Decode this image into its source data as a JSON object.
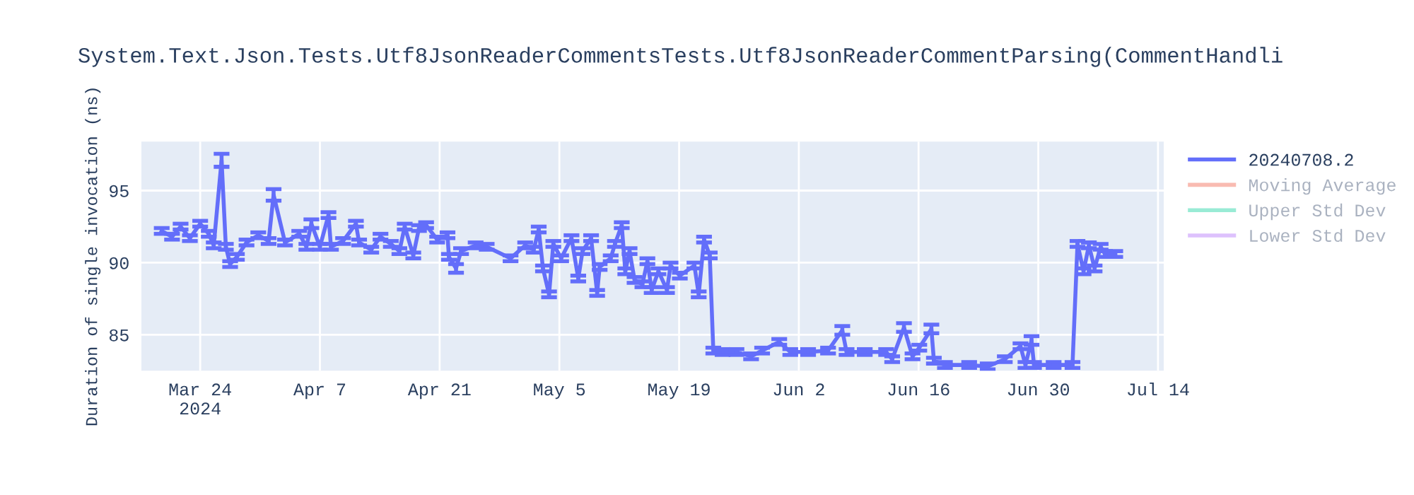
{
  "chart_data": {
    "type": "line",
    "title": "System.Text.Json.Tests.Utf8JsonReaderCommentsTests.Utf8JsonReaderCommentParsing(CommentHandli",
    "ylabel": "Duration of single invocation (ns)",
    "x": [
      "2024-03-19T12:00",
      "2024-03-20T17:00",
      "2024-03-21T17:00",
      "2024-03-22T19:00",
      "2024-03-24T00:00",
      "2024-03-25T00:00",
      "2024-03-25T14:00",
      "2024-03-26T12:00",
      "2024-03-27T00:00",
      "2024-03-27T12:00",
      "2024-03-28T07:00",
      "2024-03-29T10:00",
      "2024-03-30T19:00",
      "2024-04-01T00:00",
      "2024-04-01T14:00",
      "2024-04-02T22:00",
      "2024-04-04T14:00",
      "2024-04-05T10:00",
      "2024-04-06T00:00",
      "2024-04-07T00:00",
      "2024-04-08T00:00",
      "2024-04-08T07:00",
      "2024-04-09T17:00",
      "2024-04-11T05:00",
      "2024-04-11T14:00",
      "2024-04-13T00:00",
      "2024-04-14T02:00",
      "2024-04-15T07:00",
      "2024-04-16T07:00",
      "2024-04-16T22:00",
      "2024-04-17T22:00",
      "2024-04-18T14:00",
      "2024-04-19T10:00",
      "2024-04-20T17:00",
      "2024-04-21T22:00",
      "2024-04-22T02:00",
      "2024-04-22T22:00",
      "2024-04-23T12:00",
      "2024-04-25T05:00",
      "2024-04-26T12:00",
      "2024-04-29T07:00",
      "2024-05-01T00:00",
      "2024-05-02T00:00",
      "2024-05-02T14:00",
      "2024-05-03T02:00",
      "2024-05-03T19:00",
      "2024-05-04T07:00",
      "2024-05-05T05:00",
      "2024-05-06T10:00",
      "2024-05-07T05:00",
      "2024-05-07T17:00",
      "2024-05-08T17:00",
      "2024-05-09T10:00",
      "2024-05-09T17:00",
      "2024-05-11T00:00",
      "2024-05-11T12:00",
      "2024-05-12T07:00",
      "2024-05-12T17:00",
      "2024-05-13T05:00",
      "2024-05-13T19:00",
      "2024-05-14T17:00",
      "2024-05-15T07:00",
      "2024-05-15T19:00",
      "2024-05-16T14:00",
      "2024-05-17T14:00",
      "2024-05-18T00:00",
      "2024-05-19T02:00",
      "2024-05-20T19:00",
      "2024-05-21T07:00",
      "2024-05-21T22:00",
      "2024-05-22T14:00",
      "2024-05-23T00:00",
      "2024-05-24T02:00",
      "2024-05-25T17:00",
      "2024-05-27T10:00",
      "2024-05-28T17:00",
      "2024-05-30T17:00",
      "2024-06-01T00:00",
      "2024-06-03T02:00",
      "2024-06-05T10:00",
      "2024-06-07T02:00",
      "2024-06-07T14:00",
      "2024-06-09T17:00",
      "2024-06-12T05:00",
      "2024-06-12T22:00",
      "2024-06-14T07:00",
      "2024-06-15T07:00",
      "2024-06-16T02:00",
      "2024-06-17T12:00",
      "2024-06-17T19:00",
      "2024-06-19T02:00",
      "2024-06-21T22:00",
      "2024-06-24T02:00",
      "2024-06-26T02:00",
      "2024-06-27T22:00",
      "2024-06-28T12:00",
      "2024-06-29T05:00",
      "2024-06-29T12:00",
      "2024-07-01T19:00",
      "2024-07-04T00:00",
      "2024-07-04T14:00",
      "2024-07-05T07:00",
      "2024-07-05T22:00",
      "2024-07-06T14:00",
      "2024-07-07T07:00",
      "2024-07-07T19:00",
      "2024-07-09T00:00"
    ],
    "series": [
      {
        "name": "20240708.2",
        "color": "#636efa",
        "values": [
          92.2,
          91.8,
          92.5,
          91.7,
          92.7,
          92.0,
          91.2,
          97.1,
          91.1,
          89.9,
          90.4,
          91.4,
          91.9,
          91.5,
          94.7,
          91.4,
          92.0,
          91.1,
          92.7,
          91.1,
          93.3,
          91.1,
          91.5,
          92.7,
          91.4,
          90.9,
          91.8,
          91.3,
          90.8,
          92.5,
          90.5,
          92.4,
          92.6,
          91.6,
          91.9,
          90.4,
          89.6,
          90.8,
          91.2,
          91.1,
          90.3,
          91.2,
          90.9,
          92.3,
          89.6,
          87.8,
          91.3,
          90.3,
          91.7,
          88.9,
          90.8,
          91.7,
          87.9,
          89.7,
          90.3,
          91.3,
          92.6,
          89.4,
          90.8,
          88.8,
          88.5,
          90.1,
          88.1,
          89.4,
          88.1,
          89.8,
          89.1,
          89.8,
          87.8,
          91.6,
          90.5,
          83.9,
          83.8,
          83.8,
          83.5,
          83.9,
          84.5,
          83.8,
          83.8,
          83.9,
          85.3,
          83.8,
          83.8,
          83.8,
          83.3,
          85.5,
          83.5,
          84.1,
          85.4,
          83.2,
          82.9,
          82.9,
          82.8,
          83.3,
          84.2,
          82.9,
          84.6,
          82.9,
          82.9,
          82.9,
          91.3,
          89.4,
          91.2,
          89.6,
          91.1,
          90.6,
          90.6
        ],
        "errors": [
          0.2,
          0.2,
          0.2,
          0.2,
          0.2,
          0.2,
          0.2,
          0.45,
          0.2,
          0.2,
          0.2,
          0.2,
          0.2,
          0.2,
          0.4,
          0.2,
          0.2,
          0.2,
          0.3,
          0.2,
          0.2,
          0.2,
          0.2,
          0.2,
          0.2,
          0.2,
          0.2,
          0.2,
          0.2,
          0.2,
          0.2,
          0.2,
          0.2,
          0.2,
          0.2,
          0.2,
          0.3,
          0.2,
          0.2,
          0.2,
          0.2,
          0.2,
          0.2,
          0.2,
          0.2,
          0.2,
          0.2,
          0.2,
          0.2,
          0.2,
          0.2,
          0.2,
          0.2,
          0.2,
          0.2,
          0.2,
          0.2,
          0.2,
          0.2,
          0.2,
          0.2,
          0.2,
          0.2,
          0.2,
          0.2,
          0.2,
          0.2,
          0.2,
          0.2,
          0.2,
          0.2,
          0.2,
          0.2,
          0.2,
          0.2,
          0.2,
          0.2,
          0.2,
          0.2,
          0.2,
          0.3,
          0.2,
          0.2,
          0.2,
          0.2,
          0.3,
          0.2,
          0.2,
          0.3,
          0.2,
          0.2,
          0.2,
          0.2,
          0.2,
          0.2,
          0.2,
          0.3,
          0.2,
          0.2,
          0.2,
          0.2,
          0.2,
          0.2,
          0.2,
          0.2,
          0.2,
          0.2
        ]
      },
      {
        "name": "Moving Average",
        "color": "#ef553b",
        "values": [
          null,
          null,
          null,
          null,
          null,
          null,
          null,
          null,
          null,
          null,
          null,
          null,
          null,
          null,
          null,
          null,
          null,
          null,
          null,
          null,
          null,
          null,
          null,
          null,
          null,
          null,
          null,
          null,
          null,
          null,
          null,
          null,
          null,
          null,
          null,
          null,
          null,
          null,
          null,
          null,
          null,
          null,
          null,
          null,
          null,
          null,
          null,
          null,
          null,
          null,
          null,
          null,
          null,
          null,
          null,
          null,
          null,
          null,
          null,
          null,
          null,
          null,
          null,
          null,
          null,
          null,
          null,
          null,
          null,
          null,
          null,
          null,
          null,
          null,
          null,
          null,
          null,
          null,
          null,
          null,
          null,
          null,
          null,
          null,
          null,
          null,
          null,
          null,
          null,
          null,
          null,
          null,
          null,
          null,
          null,
          null,
          null,
          null,
          null,
          null,
          null,
          null,
          null,
          null,
          null,
          null,
          null
        ]
      },
      {
        "name": "Upper Std Dev",
        "color": "#00cc96",
        "values": [
          null,
          null,
          null,
          null,
          null,
          null,
          null,
          null,
          null,
          null,
          null,
          null,
          null,
          null,
          null,
          null,
          null,
          null,
          null,
          null,
          null,
          null,
          null,
          null,
          null,
          null,
          null,
          null,
          null,
          null,
          null,
          null,
          null,
          null,
          null,
          null,
          null,
          null,
          null,
          null,
          null,
          null,
          null,
          null,
          null,
          null,
          null,
          null,
          null,
          null,
          null,
          null,
          null,
          null,
          null,
          null,
          null,
          null,
          null,
          null,
          null,
          null,
          null,
          null,
          null,
          null,
          null,
          null,
          null,
          null,
          null,
          null,
          null,
          null,
          null,
          null,
          null,
          null,
          null,
          null,
          null,
          null,
          null,
          null,
          null,
          null,
          null,
          null,
          null,
          null,
          null,
          null,
          null,
          null,
          null,
          null,
          null,
          null,
          null,
          null,
          null,
          null,
          null,
          null,
          null,
          null,
          null
        ]
      },
      {
        "name": "Lower Std Dev",
        "color": "#ab63fa",
        "values": [
          null,
          null,
          null,
          null,
          null,
          null,
          null,
          null,
          null,
          null,
          null,
          null,
          null,
          null,
          null,
          null,
          null,
          null,
          null,
          null,
          null,
          null,
          null,
          null,
          null,
          null,
          null,
          null,
          null,
          null,
          null,
          null,
          null,
          null,
          null,
          null,
          null,
          null,
          null,
          null,
          null,
          null,
          null,
          null,
          null,
          null,
          null,
          null,
          null,
          null,
          null,
          null,
          null,
          null,
          null,
          null,
          null,
          null,
          null,
          null,
          null,
          null,
          null,
          null,
          null,
          null,
          null,
          null,
          null,
          null,
          null,
          null,
          null,
          null,
          null,
          null,
          null,
          null,
          null,
          null,
          null,
          null,
          null,
          null,
          null,
          null,
          null,
          null,
          null,
          null,
          null,
          null,
          null,
          null,
          null,
          null,
          null,
          null,
          null,
          null,
          null,
          null,
          null,
          null,
          null,
          null,
          null
        ]
      }
    ],
    "xlim": [
      "2024-03-17T03:00",
      "2024-07-14T16:00"
    ],
    "xticks": [
      {
        "value": "2024-03-24",
        "label": "Mar 24\n2024"
      },
      {
        "value": "2024-04-07",
        "label": "Apr 7"
      },
      {
        "value": "2024-04-21",
        "label": "Apr 21"
      },
      {
        "value": "2024-05-05",
        "label": "May 5"
      },
      {
        "value": "2024-05-19",
        "label": "May 19"
      },
      {
        "value": "2024-06-02",
        "label": "Jun 2"
      },
      {
        "value": "2024-06-16",
        "label": "Jun 16"
      },
      {
        "value": "2024-06-30",
        "label": "Jun 30"
      },
      {
        "value": "2024-07-14",
        "label": "Jul 14"
      }
    ],
    "ylim": [
      82.5,
      98.4
    ],
    "yticks": [
      85,
      90,
      95
    ],
    "grid": true,
    "legend": "right",
    "marker": "none",
    "line_style": "solid"
  }
}
